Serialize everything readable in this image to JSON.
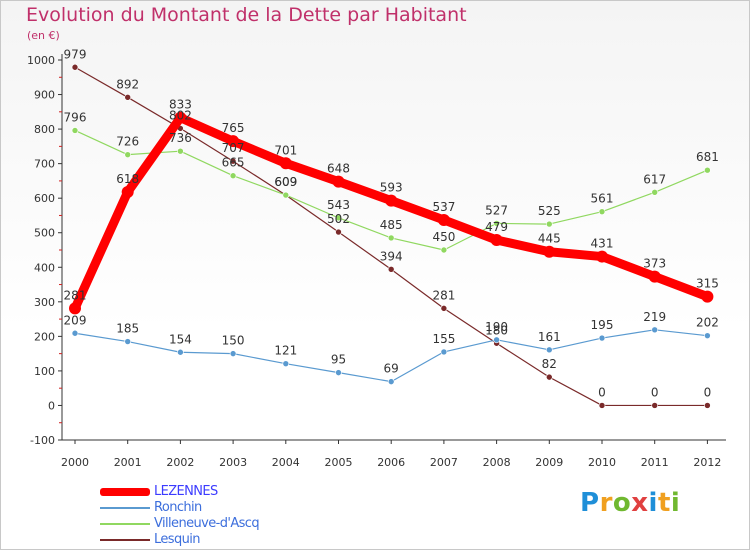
{
  "header": {
    "title": "Evolution du Montant de la Dette par Habitant",
    "unit": "(en €)"
  },
  "logo": {
    "letters": [
      {
        "ch": "P",
        "color": "#1f8fd8"
      },
      {
        "ch": "r",
        "color": "#f0a020"
      },
      {
        "ch": "o",
        "color": "#70b830"
      },
      {
        "ch": "x",
        "color": "#e04040"
      },
      {
        "ch": "i",
        "color": "#1f8fd8"
      },
      {
        "ch": "t",
        "color": "#f0a020"
      },
      {
        "ch": "i",
        "color": "#70b830"
      }
    ]
  },
  "chart_data": {
    "type": "line",
    "title": "Evolution du Montant de la Dette par Habitant",
    "ylabel": "(en €)",
    "xlabel": "",
    "x": [
      "2000",
      "2001",
      "2002",
      "2003",
      "2004",
      "2005",
      "2006",
      "2007",
      "2008",
      "2009",
      "2010",
      "2011",
      "2012"
    ],
    "ylim": [
      -100,
      1000
    ],
    "yticks": [
      -100,
      0,
      100,
      200,
      300,
      400,
      500,
      600,
      700,
      800,
      900,
      1000
    ],
    "grid": false,
    "legend": "bottom-left",
    "series": [
      {
        "name": "LEZENNES",
        "color": "#ff0000",
        "labelColor": "#3c3cff",
        "values": [
          281,
          618,
          833,
          765,
          701,
          648,
          593,
          537,
          479,
          445,
          431,
          373,
          315
        ],
        "labels": [
          "281",
          "618",
          "833",
          "765",
          "701",
          "648",
          "593",
          "537",
          "479",
          "445",
          "431",
          "373",
          "315"
        ]
      },
      {
        "name": "Ronchin",
        "color": "#5a9ad0",
        "labelColor": "#3c6edc",
        "values": [
          209,
          185,
          154,
          150,
          121,
          95,
          69,
          155,
          190,
          161,
          195,
          219,
          202
        ],
        "labels": [
          "209",
          "185",
          "154",
          "150",
          "121",
          "95",
          "69",
          "155",
          "190",
          "161",
          "195",
          "219",
          "202"
        ]
      },
      {
        "name": "Villeneuve-d'Ascq",
        "color": "#90d860",
        "labelColor": "#3c6edc",
        "values": [
          796,
          726,
          736,
          665,
          609,
          543,
          485,
          450,
          527,
          525,
          561,
          617,
          681
        ],
        "labels": [
          "796",
          "726",
          "736",
          "665",
          "609",
          "543",
          "485",
          "450",
          "527",
          "525",
          "561",
          "617",
          "681"
        ]
      },
      {
        "name": "Lesquin",
        "color": "#7a2a2a",
        "labelColor": "#3c6edc",
        "values": [
          979,
          892,
          802,
          707,
          609,
          502,
          394,
          281,
          180,
          82,
          0,
          0,
          0
        ],
        "labels": [
          "979",
          "892",
          "802",
          "707",
          "609",
          "502",
          "394",
          "281",
          "180",
          "82",
          "0",
          "0",
          "0"
        ]
      }
    ]
  }
}
